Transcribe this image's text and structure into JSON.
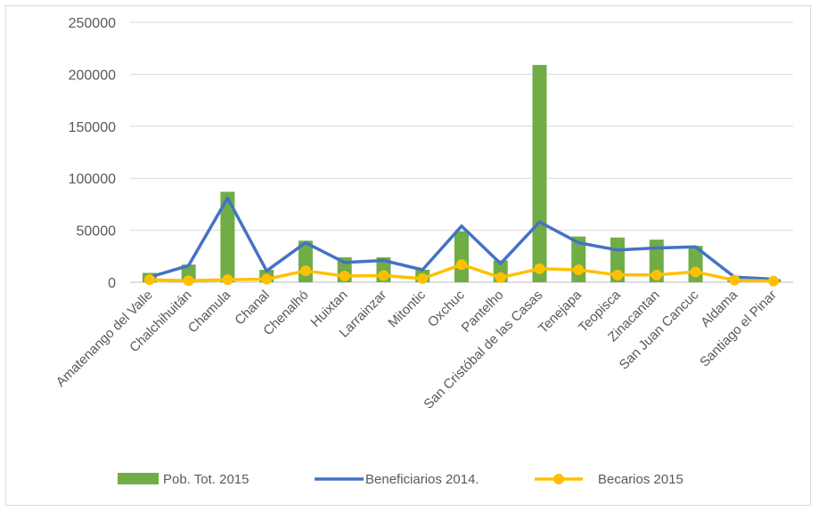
{
  "chart_data": {
    "type": "bar",
    "categories": [
      "Amatenango del Valle",
      "Chalchihuitán",
      "Chamula",
      "Chanal",
      "Chenalhó",
      "Huixtan",
      "Larrainzar",
      "Mitontic",
      "Oxchuc",
      "Pantelho",
      "San Cristóbal de las Casas",
      "Tenejapa",
      "Teopisca",
      "Zinacantan",
      "San Juan Cancuc",
      "Aldama",
      "Santiago el Pinar"
    ],
    "series": [
      {
        "name": "Pob. Tot. 2015",
        "kind": "bar",
        "color": "#70ad47",
        "values": [
          9000,
          17000,
          87000,
          12000,
          40000,
          24000,
          24000,
          12000,
          49000,
          21000,
          209000,
          44000,
          43000,
          41000,
          35000,
          5000,
          3000
        ]
      },
      {
        "name": "Beneficiarios 2014.",
        "kind": "line",
        "color": "#4472c4",
        "values": [
          5000,
          16000,
          81000,
          11000,
          38000,
          19000,
          21000,
          12000,
          54000,
          18000,
          58000,
          38000,
          31000,
          33000,
          34000,
          5000,
          3000
        ]
      },
      {
        "name": "Becarios 2015",
        "kind": "line-markers",
        "color": "#ffc000",
        "values": [
          2500,
          1500,
          2500,
          3000,
          11000,
          6000,
          6500,
          3500,
          17000,
          4500,
          13000,
          12000,
          7000,
          7000,
          10000,
          2000,
          1200
        ]
      }
    ],
    "yticks": [
      "0",
      "50000",
      "100000",
      "150000",
      "200000",
      "250000"
    ],
    "ylim": [
      0,
      250000
    ],
    "grid": true,
    "legend": "bottom"
  }
}
